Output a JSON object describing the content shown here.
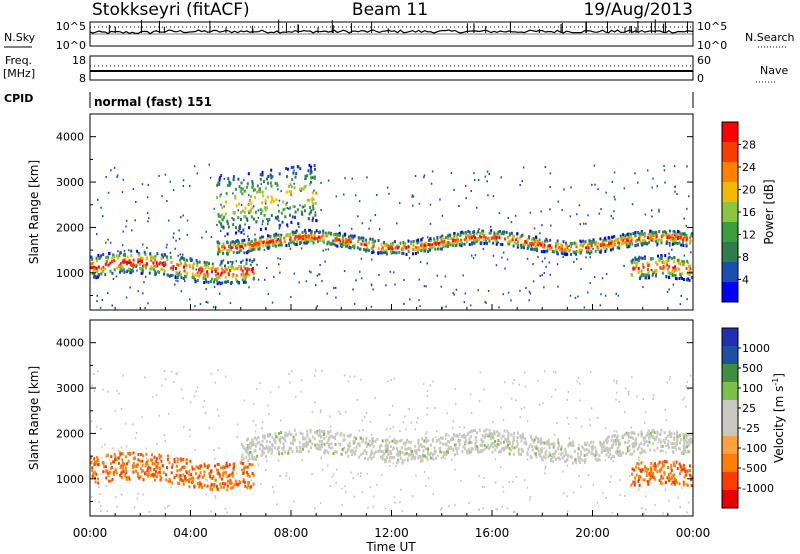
{
  "header": {
    "station": "Stokkseyri (fitACF)",
    "beam": "Beam 11",
    "date": "19/Aug/2013"
  },
  "noise_panel": {
    "left_label": "N.Sky",
    "left_tick_top": "10^5",
    "left_tick_bottom": "10^0",
    "right_label": "N.Search",
    "right_tick_top": "10^5",
    "right_tick_bottom": "10^0"
  },
  "freq_panel": {
    "left_label_1": "Freq.",
    "left_label_2": "[MHz]",
    "left_tick_top": "18",
    "left_tick_bottom": "8",
    "right_label": "Nave",
    "right_tick_top": "60",
    "right_tick_bottom": "0"
  },
  "cpid": {
    "label": "CPID",
    "value": "normal (fast) 151"
  },
  "colors": {
    "power": [
      "#0000ff",
      "#1a4fb0",
      "#2e7d4a",
      "#3c9e3c",
      "#8cc63f",
      "#f5b800",
      "#ff8000",
      "#ff3c00",
      "#ff0000"
    ],
    "velocity": [
      "#e60000",
      "#ff3c00",
      "#ff8000",
      "#ffa040",
      "#c8c8c0",
      "#c8c8c0",
      "#7cc04a",
      "#3d8f3d",
      "#1f4fa0",
      "#2030b0"
    ],
    "ground_scatter": "#c8c8c0"
  },
  "chart_data": [
    {
      "type": "heatmap",
      "title": "",
      "xlabel": "Time UT",
      "ylabel": "Slant Range [km]",
      "xlim": [
        "00:00",
        "24:00"
      ],
      "ylim": [
        180,
        4500
      ],
      "x_ticks": [
        "00:00",
        "04:00",
        "08:00",
        "12:00",
        "16:00",
        "20:00",
        "00:00"
      ],
      "y_ticks": [
        "1000",
        "2000",
        "3000",
        "4000"
      ],
      "colorbar": {
        "label": "Power [dB]",
        "range": [
          0,
          32
        ],
        "ticks": [
          "4",
          "8",
          "12",
          "16",
          "20",
          "24",
          "28"
        ]
      },
      "features": [
        {
          "name": "main band",
          "start_hour": 5,
          "end_hour": 24,
          "range_km": [
            1550,
            1850
          ],
          "peak_db": 28
        },
        {
          "name": "early near-range echoes",
          "start_hour": 0,
          "end_hour": 6.5,
          "range_km": [
            900,
            1400
          ],
          "peak_db": 30
        },
        {
          "name": "late near-range echoes",
          "start_hour": 21.5,
          "end_hour": 24,
          "range_km": [
            800,
            1300
          ],
          "peak_db": 28
        },
        {
          "name": "far-range patches",
          "start_hour": 5,
          "end_hour": 9,
          "range_km": [
            2000,
            3300
          ],
          "peak_db": 20
        }
      ]
    },
    {
      "type": "heatmap",
      "title": "",
      "xlabel": "Time UT",
      "ylabel": "Slant Range [km]",
      "xlim": [
        "00:00",
        "24:00"
      ],
      "ylim": [
        180,
        4500
      ],
      "x_ticks": [
        "00:00",
        "04:00",
        "08:00",
        "12:00",
        "16:00",
        "20:00",
        "00:00"
      ],
      "y_ticks": [
        "1000",
        "2000",
        "3000",
        "4000"
      ],
      "colorbar": {
        "label": "Velocity [m s^-1]",
        "ticks": [
          "1000",
          "500",
          "100",
          "25",
          "-25",
          "-100",
          "-500",
          "-1000"
        ]
      },
      "features": [
        {
          "name": "ground scatter band",
          "start_hour": 6,
          "end_hour": 24,
          "range_km": [
            1500,
            2000
          ],
          "velocity": 0
        },
        {
          "name": "early negative velocities",
          "start_hour": 0,
          "end_hour": 6.5,
          "range_km": [
            900,
            1500
          ],
          "velocity": -500
        },
        {
          "name": "late negative velocities",
          "start_hour": 21.5,
          "end_hour": 24,
          "range_km": [
            800,
            1300
          ],
          "velocity": -500
        }
      ]
    }
  ]
}
